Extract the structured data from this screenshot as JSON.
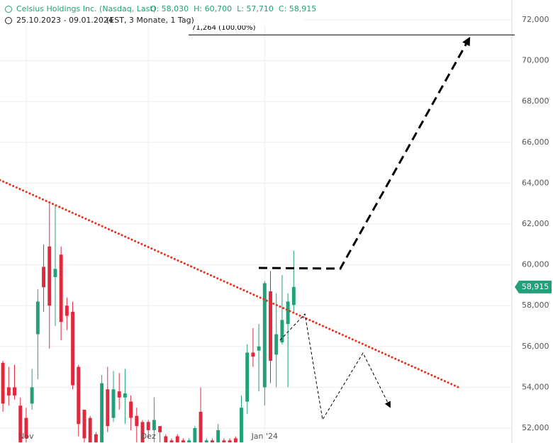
{
  "header": {
    "title": "Celsius Holdings Inc. (Nasdaq, Last)",
    "ohlc": "O: 58,030  H: 60,700  L: 57,710  C: 58,915",
    "range": "25.10.2023 - 09.01.2024",
    "settings": "(EST, 3 Monate, 1 Tag)"
  },
  "chart_data": {
    "type": "candlestick",
    "open": [
      55200,
      54000,
      54000,
      53100,
      52500,
      53200,
      56600,
      59900,
      60900,
      59400,
      60500,
      58000,
      57700,
      55000,
      52900,
      52500,
      51700,
      51300,
      53900,
      52500,
      53800,
      53500,
      53300,
      52600,
      52300,
      52300,
      51900,
      52100,
      51600,
      51400,
      51600,
      51400,
      51300,
      51300,
      52800,
      51300,
      51400,
      51300,
      51400,
      51400,
      51500,
      51300,
      53300,
      55700,
      55800,
      54000,
      58700,
      55600,
      56200,
      57100,
      58030
    ],
    "high": [
      55300,
      55000,
      55100,
      53500,
      53000,
      54900,
      58800,
      61000,
      63000,
      62900,
      60900,
      58400,
      58200,
      55100,
      52900,
      52600,
      51800,
      54600,
      55000,
      54800,
      54700,
      54900,
      53600,
      53000,
      52400,
      52400,
      53500,
      52100,
      51700,
      51500,
      51700,
      51500,
      51500,
      52100,
      54000,
      51500,
      51500,
      52200,
      51500,
      51500,
      51600,
      53600,
      56100,
      56900,
      57100,
      59200,
      59700,
      58600,
      59500,
      58600,
      60700
    ],
    "low": [
      52800,
      53100,
      53400,
      51300,
      51300,
      52900,
      54400,
      57700,
      55900,
      57000,
      56300,
      56800,
      53900,
      51600,
      51300,
      51300,
      51300,
      51300,
      51800,
      52300,
      52900,
      52200,
      51900,
      51300,
      51300,
      51500,
      51300,
      51300,
      51300,
      51300,
      51300,
      51300,
      51300,
      51300,
      51300,
      51300,
      51300,
      51300,
      51300,
      51300,
      51300,
      51300,
      52700,
      55000,
      53800,
      53100,
      54200,
      54000,
      56100,
      54000,
      57710
    ],
    "close": [
      53200,
      53600,
      53600,
      51300,
      51500,
      54000,
      58200,
      58900,
      58000,
      59800,
      57200,
      57500,
      54100,
      52200,
      51500,
      51300,
      51300,
      54200,
      52100,
      53900,
      53500,
      53700,
      52500,
      52100,
      51300,
      51900,
      52400,
      51800,
      51300,
      51300,
      51300,
      51300,
      51400,
      52000,
      51300,
      51400,
      51300,
      51900,
      51300,
      51300,
      51300,
      53000,
      55700,
      55500,
      56000,
      59100,
      55300,
      56600,
      57300,
      58200,
      58915
    ],
    "up_color": "#22a07a",
    "down_color": "#e0293d",
    "ylim": [
      51271,
      72972
    ],
    "yticks": [
      {
        "value": 52000,
        "label": "52,000"
      },
      {
        "value": 54000,
        "label": "54,000"
      },
      {
        "value": 56000,
        "label": "56,000"
      },
      {
        "value": 58000,
        "label": "58,000"
      },
      {
        "value": 60000,
        "label": "60,000"
      },
      {
        "value": 62000,
        "label": "62,000"
      },
      {
        "value": 64000,
        "label": "64,000"
      },
      {
        "value": 66000,
        "label": "66,000"
      },
      {
        "value": 68000,
        "label": "68,000"
      },
      {
        "value": 70000,
        "label": "70,000"
      },
      {
        "value": 72000,
        "label": "72,000"
      }
    ],
    "xlim": [
      -0.5,
      87.5
    ],
    "xticks": [
      {
        "value": 4,
        "label": "Nov"
      },
      {
        "value": 25,
        "label": "Dez"
      },
      {
        "value": 45,
        "label": "Jan '24"
      }
    ],
    "grid": true,
    "last_price": {
      "value": 58915,
      "label": "58,915"
    },
    "annotation": {
      "value": 71264,
      "label": "71,264 (100.00%)"
    }
  }
}
